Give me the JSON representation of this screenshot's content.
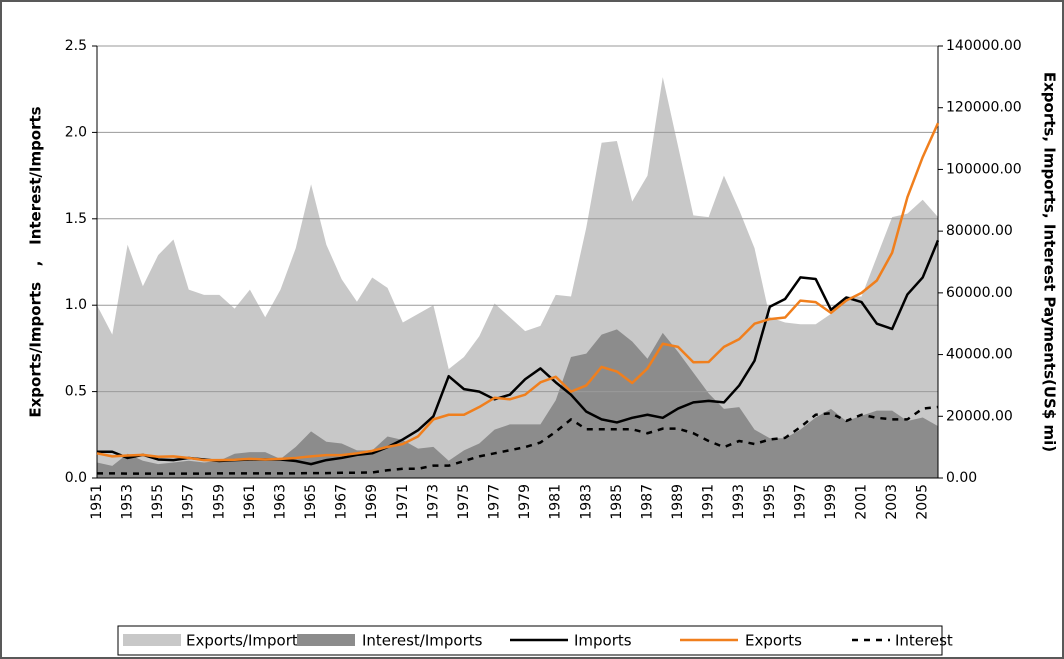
{
  "chart_data": {
    "type": "combo",
    "y_label": "Exports/Imports   ,   Interest/Imports",
    "y2_label": "Exports, Imports, Interest Payments(US$ mi)",
    "categories": [
      "1951",
      null,
      "1953",
      null,
      "1955",
      null,
      "1957",
      null,
      "1959",
      null,
      "1961",
      null,
      "1963",
      null,
      "1965",
      null,
      "1967",
      null,
      "1969",
      null,
      "1971",
      null,
      "1973",
      null,
      "1975",
      null,
      "1977",
      null,
      "1979",
      null,
      "1981",
      null,
      "1983",
      null,
      "1985",
      null,
      "1987",
      null,
      "1989",
      null,
      "1991",
      null,
      "1993",
      null,
      "1995",
      null,
      "1997",
      null,
      "1999",
      null,
      "2001",
      null,
      "2003",
      null,
      "2005",
      null
    ],
    "ylim": [
      0,
      2.5
    ],
    "yticks": [
      {
        "value": 0,
        "label": "0.0"
      },
      {
        "value": 0.5,
        "label": "0.5"
      },
      {
        "value": 1,
        "label": "1.0"
      },
      {
        "value": 1.5,
        "label": "1.5"
      },
      {
        "value": 2,
        "label": "2.0"
      },
      {
        "value": 2.5,
        "label": "2.5"
      }
    ],
    "y2lim": [
      0,
      140000
    ],
    "y2ticks": [
      {
        "value": 0,
        "label": "0.00"
      },
      {
        "value": 20000,
        "label": "20000.00"
      },
      {
        "value": 40000,
        "label": "40000.00"
      },
      {
        "value": 60000,
        "label": "60000.00"
      },
      {
        "value": 80000,
        "label": "80000.00"
      },
      {
        "value": 100000,
        "label": "100000.00"
      },
      {
        "value": 120000,
        "label": "120000.00"
      },
      {
        "value": 140000,
        "label": "140000.00"
      }
    ],
    "grid": true,
    "legend": "bottom",
    "series": [
      {
        "name": "Exports/Imports",
        "type": "area",
        "color": "#c8c8c8",
        "axis": "y",
        "values": [
          1.0,
          0.83,
          1.35,
          1.11,
          1.29,
          1.38,
          1.09,
          1.06,
          1.06,
          0.98,
          1.09,
          0.93,
          1.09,
          1.33,
          1.7,
          1.35,
          1.15,
          1.02,
          1.16,
          1.1,
          0.9,
          0.95,
          1.0,
          0.63,
          0.7,
          0.82,
          1.01,
          0.93,
          0.85,
          0.88,
          1.06,
          1.05,
          1.45,
          1.94,
          1.95,
          1.6,
          1.75,
          2.32,
          1.92,
          1.52,
          1.51,
          1.75,
          1.55,
          1.33,
          0.93,
          0.9,
          0.89,
          0.89,
          0.95,
          1.05,
          1.05,
          1.28,
          1.51,
          1.53,
          1.61,
          1.51
        ]
      },
      {
        "name": "Interest/Imports",
        "type": "area",
        "color": "#8c8c8c",
        "axis": "y",
        "values": [
          0.09,
          0.07,
          0.14,
          0.1,
          0.08,
          0.09,
          0.1,
          0.09,
          0.1,
          0.14,
          0.15,
          0.15,
          0.11,
          0.18,
          0.27,
          0.21,
          0.2,
          0.16,
          0.16,
          0.24,
          0.22,
          0.17,
          0.18,
          0.1,
          0.16,
          0.2,
          0.28,
          0.31,
          0.31,
          0.31,
          0.45,
          0.7,
          0.72,
          0.83,
          0.86,
          0.79,
          0.69,
          0.84,
          0.73,
          0.61,
          0.49,
          0.4,
          0.41,
          0.28,
          0.23,
          0.23,
          0.28,
          0.35,
          0.4,
          0.33,
          0.36,
          0.39,
          0.39,
          0.33,
          0.35,
          0.3
        ]
      },
      {
        "name": "Imports",
        "type": "line",
        "color": "#000000",
        "axis": "y2",
        "dashed": false,
        "values": [
          8500,
          8500,
          6500,
          7500,
          6000,
          5800,
          6500,
          6000,
          5500,
          5800,
          6000,
          6000,
          6000,
          5500,
          4500,
          5800,
          6500,
          7500,
          8000,
          10000,
          12500,
          15500,
          20000,
          33000,
          28800,
          28000,
          25500,
          27000,
          32000,
          35500,
          31000,
          27000,
          21500,
          19000,
          18000,
          19500,
          20500,
          19500,
          22500,
          24500,
          25000,
          24500,
          30000,
          38000,
          55500,
          58000,
          65000,
          64500,
          54500,
          58500,
          57000,
          50000,
          48300,
          59500,
          65000,
          77000
        ]
      },
      {
        "name": "Exports",
        "type": "line",
        "color": "#f07f1d",
        "axis": "y2",
        "dashed": false,
        "values": [
          8000,
          7000,
          7300,
          7500,
          6900,
          7000,
          6500,
          5800,
          5800,
          5900,
          6200,
          6000,
          6200,
          6500,
          7000,
          7400,
          7400,
          8000,
          8800,
          10100,
          11000,
          13500,
          19000,
          20500,
          20500,
          23000,
          26000,
          25500,
          27000,
          31000,
          32800,
          28000,
          30000,
          36000,
          34500,
          30800,
          35500,
          43500,
          42500,
          37500,
          37600,
          42500,
          45000,
          50000,
          51500,
          52000,
          57500,
          57000,
          53500,
          57500,
          60000,
          64000,
          73000,
          91000,
          104000,
          115000
        ]
      },
      {
        "name": "Interest",
        "type": "line",
        "color": "#000000",
        "axis": "y2",
        "dashed": true,
        "values": [
          1500,
          1500,
          1400,
          1400,
          1400,
          1400,
          1400,
          1400,
          1500,
          1500,
          1500,
          1500,
          1500,
          1500,
          1600,
          1600,
          1700,
          1700,
          1800,
          2500,
          3000,
          3000,
          4000,
          4000,
          5500,
          7000,
          8000,
          9000,
          10000,
          11500,
          15000,
          19000,
          15800,
          15800,
          15800,
          15800,
          14500,
          16000,
          16000,
          14500,
          12000,
          10000,
          12000,
          11000,
          12500,
          13000,
          16500,
          20500,
          21000,
          18500,
          20500,
          19500,
          19000,
          19000,
          22500,
          23000
        ]
      }
    ]
  }
}
